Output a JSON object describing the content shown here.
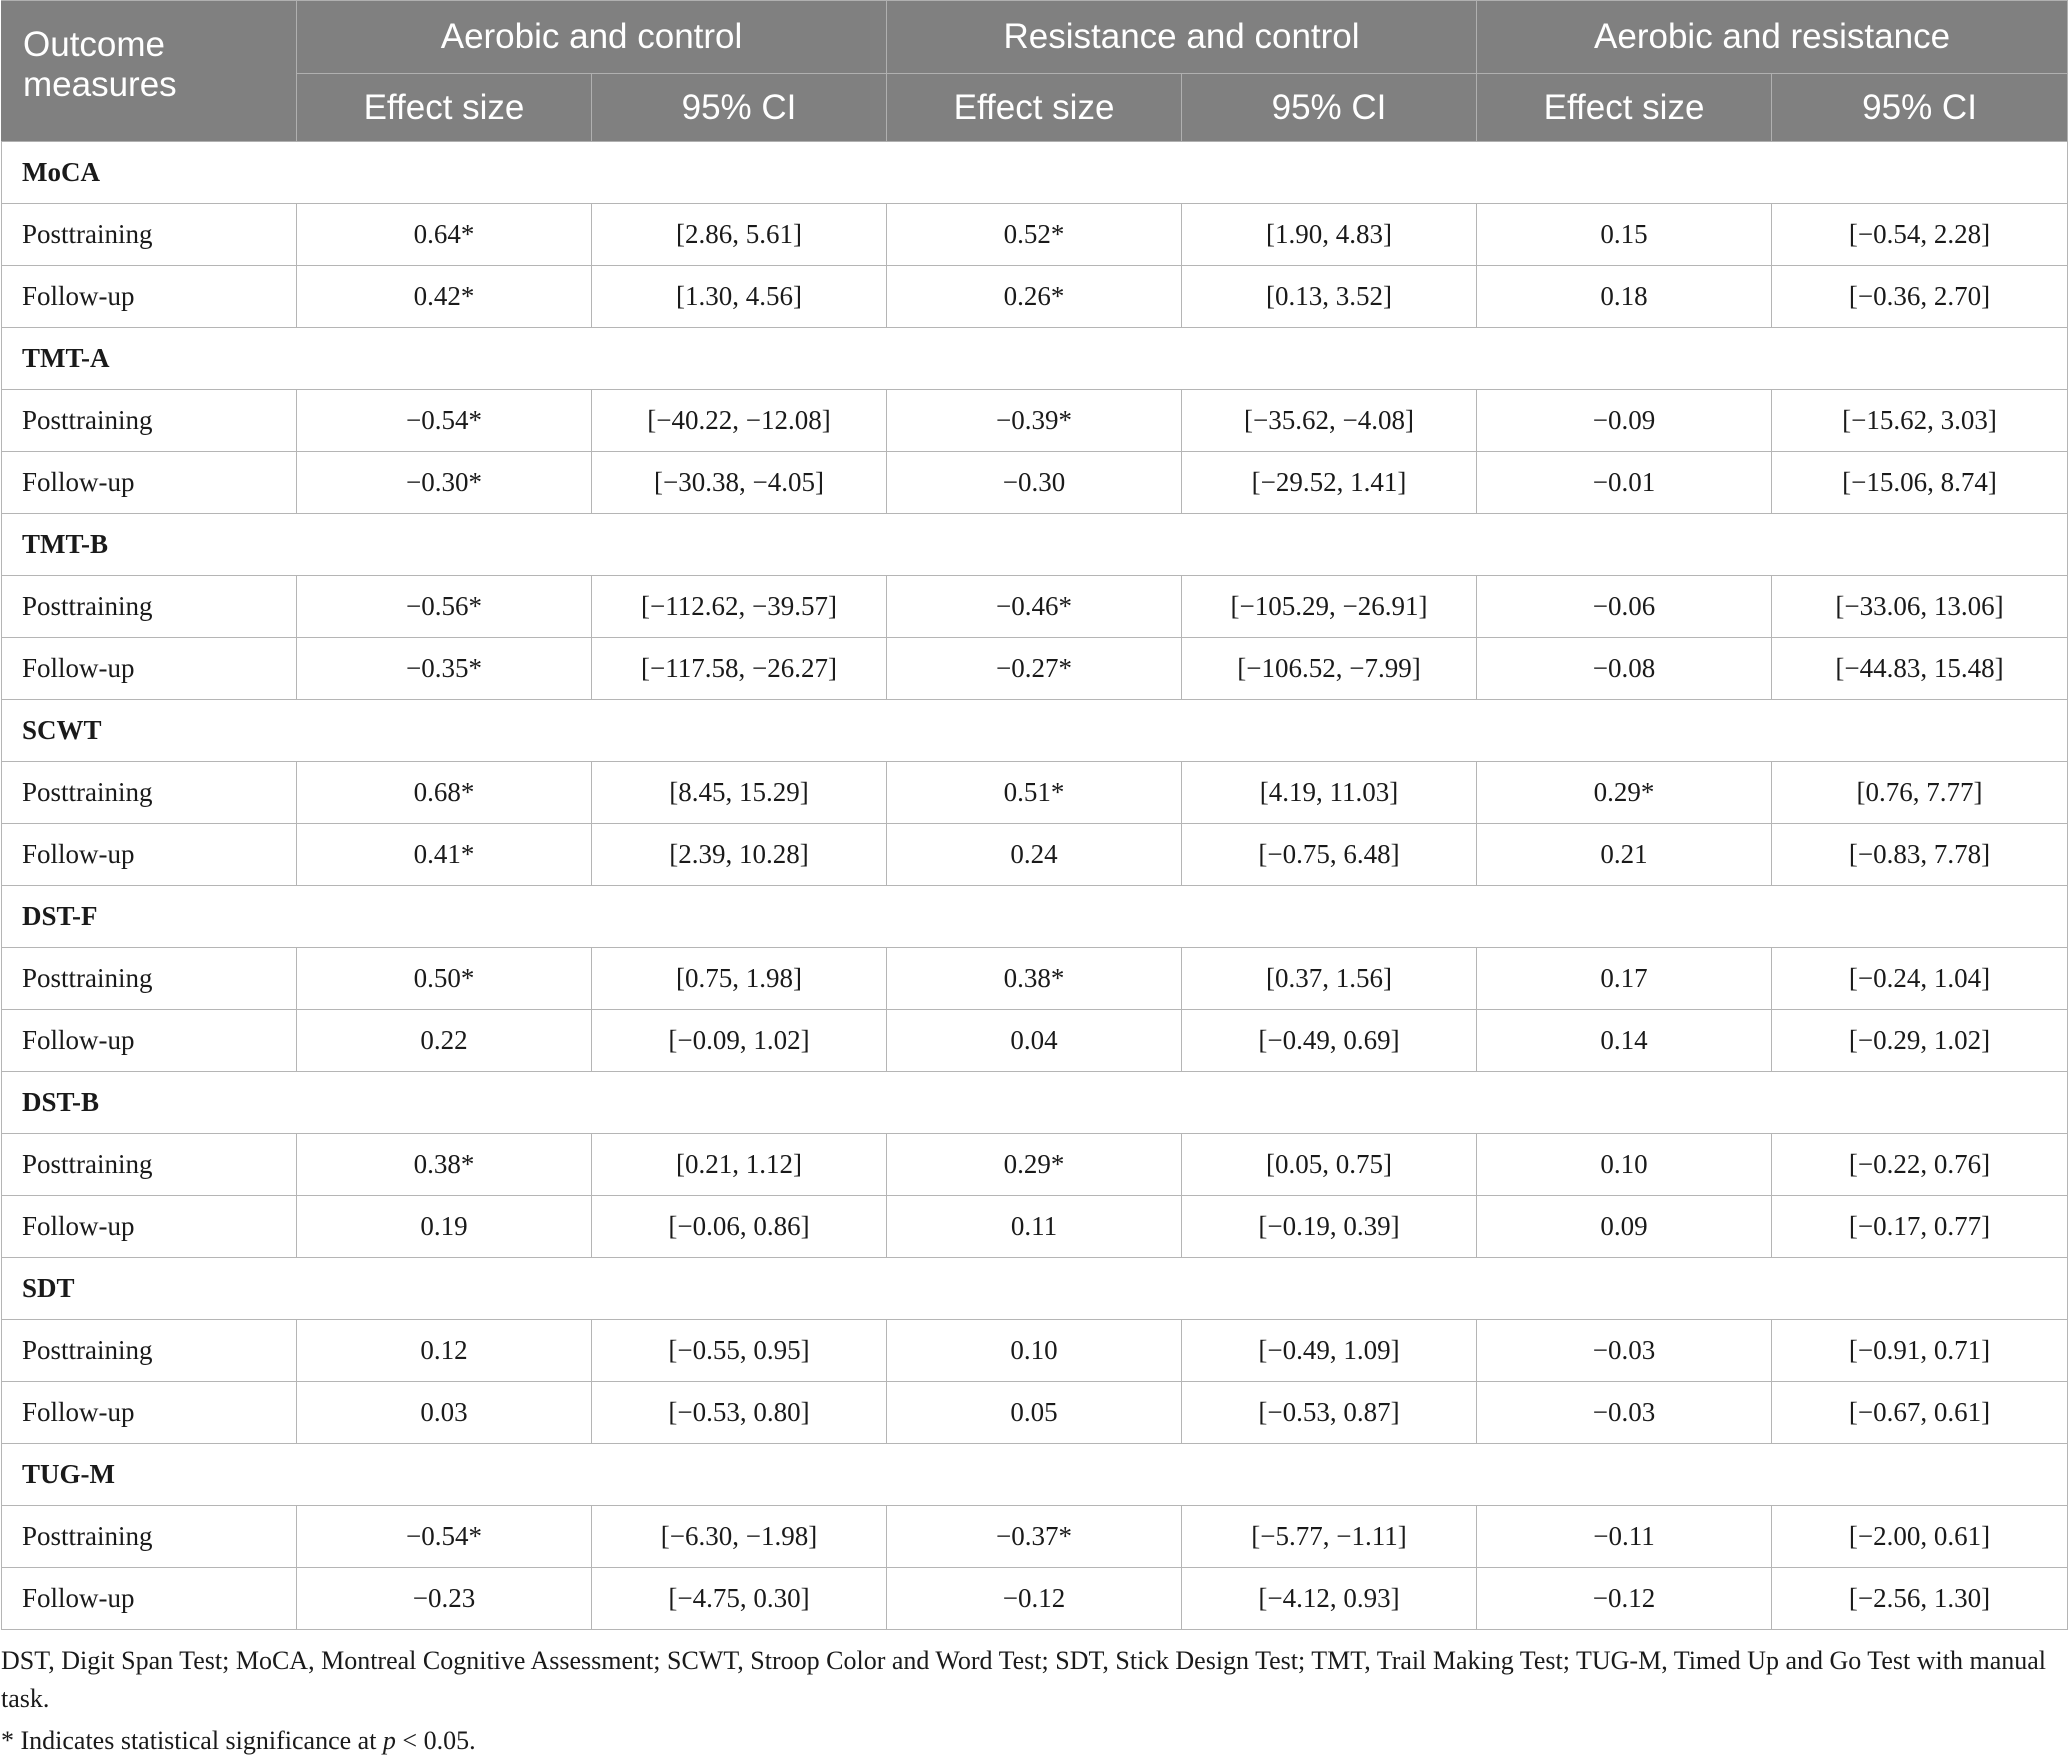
{
  "table": {
    "header": {
      "outcome_label": "Outcome measures",
      "groups": [
        "Aerobic and control",
        "Resistance and control",
        "Aerobic and resistance"
      ],
      "sub_labels": [
        "Effect size",
        "95% CI",
        "Effect size",
        "95% CI",
        "Effect size",
        "95% CI"
      ]
    },
    "sections": [
      {
        "name": "MoCA",
        "rows": [
          {
            "label": "Posttraining",
            "cells": [
              "0.64*",
              "[2.86, 5.61]",
              "0.52*",
              "[1.90, 4.83]",
              "0.15",
              "[−0.54, 2.28]"
            ]
          },
          {
            "label": "Follow-up",
            "cells": [
              "0.42*",
              "[1.30, 4.56]",
              "0.26*",
              "[0.13, 3.52]",
              "0.18",
              "[−0.36, 2.70]"
            ]
          }
        ]
      },
      {
        "name": "TMT-A",
        "rows": [
          {
            "label": "Posttraining",
            "cells": [
              "−0.54*",
              "[−40.22, −12.08]",
              "−0.39*",
              "[−35.62, −4.08]",
              "−0.09",
              "[−15.62, 3.03]"
            ]
          },
          {
            "label": "Follow-up",
            "cells": [
              "−0.30*",
              "[−30.38, −4.05]",
              "−0.30",
              "[−29.52, 1.41]",
              "−0.01",
              "[−15.06, 8.74]"
            ]
          }
        ]
      },
      {
        "name": "TMT-B",
        "rows": [
          {
            "label": "Posttraining",
            "cells": [
              "−0.56*",
              "[−112.62, −39.57]",
              "−0.46*",
              "[−105.29, −26.91]",
              "−0.06",
              "[−33.06, 13.06]"
            ]
          },
          {
            "label": "Follow-up",
            "cells": [
              "−0.35*",
              "[−117.58, −26.27]",
              "−0.27*",
              "[−106.52, −7.99]",
              "−0.08",
              "[−44.83, 15.48]"
            ]
          }
        ]
      },
      {
        "name": "SCWT",
        "rows": [
          {
            "label": "Posttraining",
            "cells": [
              "0.68*",
              "[8.45, 15.29]",
              "0.51*",
              "[4.19, 11.03]",
              "0.29*",
              "[0.76, 7.77]"
            ]
          },
          {
            "label": "Follow-up",
            "cells": [
              "0.41*",
              "[2.39, 10.28]",
              "0.24",
              "[−0.75, 6.48]",
              "0.21",
              "[−0.83, 7.78]"
            ]
          }
        ]
      },
      {
        "name": "DST-F",
        "rows": [
          {
            "label": "Posttraining",
            "cells": [
              "0.50*",
              "[0.75, 1.98]",
              "0.38*",
              "[0.37, 1.56]",
              "0.17",
              "[−0.24, 1.04]"
            ]
          },
          {
            "label": "Follow-up",
            "cells": [
              "0.22",
              "[−0.09, 1.02]",
              "0.04",
              "[−0.49, 0.69]",
              "0.14",
              "[−0.29, 1.02]"
            ]
          }
        ]
      },
      {
        "name": "DST-B",
        "rows": [
          {
            "label": "Posttraining",
            "cells": [
              "0.38*",
              "[0.21, 1.12]",
              "0.29*",
              "[0.05, 0.75]",
              "0.10",
              "[−0.22, 0.76]"
            ]
          },
          {
            "label": "Follow-up",
            "cells": [
              "0.19",
              "[−0.06, 0.86]",
              "0.11",
              "[−0.19, 0.39]",
              "0.09",
              "[−0.17, 0.77]"
            ]
          }
        ]
      },
      {
        "name": "SDT",
        "rows": [
          {
            "label": "Posttraining",
            "cells": [
              "0.12",
              "[−0.55, 0.95]",
              "0.10",
              "[−0.49, 1.09]",
              "−0.03",
              "[−0.91, 0.71]"
            ]
          },
          {
            "label": "Follow-up",
            "cells": [
              "0.03",
              "[−0.53, 0.80]",
              "0.05",
              "[−0.53, 0.87]",
              "−0.03",
              "[−0.67, 0.61]"
            ]
          }
        ]
      },
      {
        "name": "TUG-M",
        "rows": [
          {
            "label": "Posttraining",
            "cells": [
              "−0.54*",
              "[−6.30, −1.98]",
              "−0.37*",
              "[−5.77, −1.11]",
              "−0.11",
              "[−2.00, 0.61]"
            ]
          },
          {
            "label": "Follow-up",
            "cells": [
              "−0.23",
              "[−4.75, 0.30]",
              "−0.12",
              "[−4.12, 0.93]",
              "−0.12",
              "[−2.56, 1.30]"
            ]
          }
        ]
      }
    ]
  },
  "footnotes": {
    "abbreviations": "DST, Digit Span Test; MoCA, Montreal Cognitive Assessment; SCWT, Stroop Color and Word Test; SDT, Stick Design Test; TMT, Trail Making Test; TUG-M, Timed Up and Go Test with manual task.",
    "significance_prefix": "* Indicates statistical significance at ",
    "significance_p": "p",
    "significance_suffix": " < 0.05."
  }
}
